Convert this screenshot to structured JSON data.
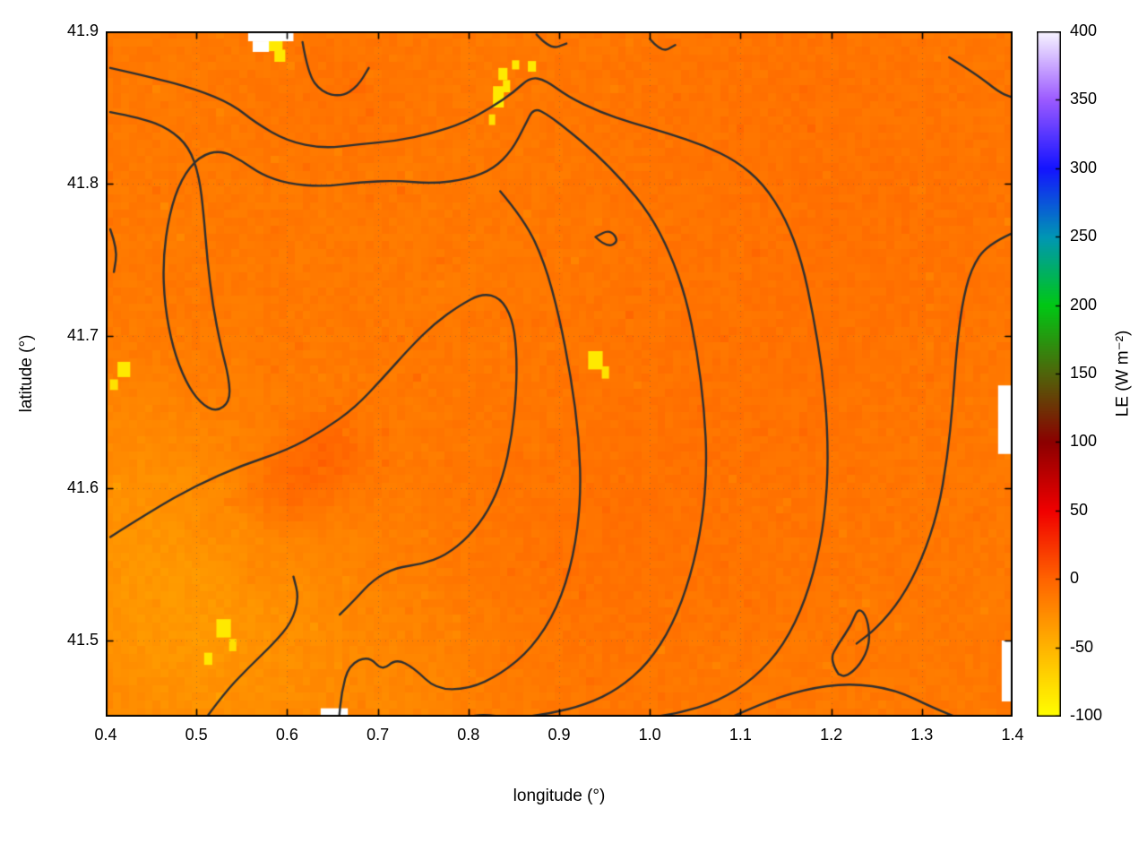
{
  "chart_data": {
    "type": "heatmap",
    "title": "",
    "x_axis": {
      "label": "longitude (°)",
      "min": 0.4,
      "max": 1.4,
      "ticks": [
        {
          "v": 0.4,
          "label": "0.4"
        },
        {
          "v": 0.5,
          "label": "0.5"
        },
        {
          "v": 0.6,
          "label": "0.6"
        },
        {
          "v": 0.7,
          "label": "0.7"
        },
        {
          "v": 0.8,
          "label": "0.8"
        },
        {
          "v": 0.9,
          "label": "0.9"
        },
        {
          "v": 1.0,
          "label": "1.0"
        },
        {
          "v": 1.1,
          "label": "1.1"
        },
        {
          "v": 1.2,
          "label": "1.2"
        },
        {
          "v": 1.3,
          "label": "1.3"
        },
        {
          "v": 1.4,
          "label": "1.4"
        }
      ]
    },
    "y_axis": {
      "label": "latitude (°)",
      "min": 41.45,
      "max": 41.9,
      "ticks": [
        {
          "v": 41.5,
          "label": "41.5"
        },
        {
          "v": 41.6,
          "label": "41.6"
        },
        {
          "v": 41.7,
          "label": "41.7"
        },
        {
          "v": 41.8,
          "label": "41.8"
        },
        {
          "v": 41.9,
          "label": "41.9"
        }
      ]
    },
    "colorbar": {
      "label": "LE (W m⁻²)",
      "min": -100,
      "max": 400,
      "ticks": [
        {
          "v": 400,
          "label": "400"
        },
        {
          "v": 350,
          "label": "350"
        },
        {
          "v": 300,
          "label": "300"
        },
        {
          "v": 250,
          "label": "250"
        },
        {
          "v": 200,
          "label": "200"
        },
        {
          "v": 150,
          "label": "150"
        },
        {
          "v": 100,
          "label": "100"
        },
        {
          "v": 50,
          "label": "50"
        },
        {
          "v": 0,
          "label": "0"
        },
        {
          "v": -50,
          "label": "-50"
        },
        {
          "v": -100,
          "label": "-100"
        }
      ],
      "palette": [
        {
          "v": -100,
          "c": "#ffff00"
        },
        {
          "v": -50,
          "c": "#ffb400"
        },
        {
          "v": 0,
          "c": "#ff6400"
        },
        {
          "v": 50,
          "c": "#f00000"
        },
        {
          "v": 100,
          "c": "#8c0000"
        },
        {
          "v": 150,
          "c": "#50640a"
        },
        {
          "v": 200,
          "c": "#00c814"
        },
        {
          "v": 250,
          "c": "#0096b4"
        },
        {
          "v": 300,
          "c": "#1414ff"
        },
        {
          "v": 350,
          "c": "#9b5aff"
        },
        {
          "v": 400,
          "c": "#f8f4ff"
        }
      ]
    },
    "field": {
      "base_value": -13,
      "noise_amplitude": 3.5,
      "features": [
        {
          "lon": 0.52,
          "lat": 41.5,
          "amp": -14,
          "sigma": 0.13
        },
        {
          "lon": 0.44,
          "lat": 41.55,
          "amp": -8,
          "sigma": 0.1
        },
        {
          "lon": 0.42,
          "lat": 41.63,
          "amp": -5,
          "sigma": 0.06
        },
        {
          "lon": 0.75,
          "lat": 41.46,
          "amp": -5,
          "sigma": 0.08
        },
        {
          "lon": 0.62,
          "lat": 41.61,
          "amp": 11,
          "sigma": 0.035
        },
        {
          "lon": 0.65,
          "lat": 41.625,
          "amp": 9,
          "sigma": 0.03
        },
        {
          "lon": 0.6,
          "lat": 41.585,
          "amp": 7,
          "sigma": 0.025
        },
        {
          "lon": 0.565,
          "lat": 41.545,
          "amp": 6,
          "sigma": 0.018
        },
        {
          "lon": 0.515,
          "lat": 41.575,
          "amp": 5,
          "sigma": 0.015
        },
        {
          "lon": 0.57,
          "lat": 41.6,
          "amp": 5,
          "sigma": 0.02
        },
        {
          "lon": 1.08,
          "lat": 41.64,
          "amp": 4,
          "sigma": 0.15
        },
        {
          "lon": 1.28,
          "lat": 41.78,
          "amp": 3,
          "sigma": 0.12
        },
        {
          "lon": 1.1,
          "lat": 41.87,
          "amp": 3,
          "sigma": 0.15
        },
        {
          "lon": 0.66,
          "lat": 41.86,
          "amp": 4,
          "sigma": 0.06
        },
        {
          "lon": 0.92,
          "lat": 41.55,
          "amp": 3,
          "sigma": 0.1
        }
      ],
      "low_spots": [
        {
          "lon": 0.585,
          "lat": 41.892,
          "w": 0.02,
          "h": 0.01,
          "value": -85
        },
        {
          "lon": 0.592,
          "lat": 41.884,
          "w": 0.012,
          "h": 0.008,
          "value": -85
        },
        {
          "lon": 0.838,
          "lat": 41.872,
          "w": 0.01,
          "h": 0.008,
          "value": -85
        },
        {
          "lon": 0.852,
          "lat": 41.878,
          "w": 0.008,
          "h": 0.006,
          "value": -85
        },
        {
          "lon": 0.833,
          "lat": 41.857,
          "w": 0.012,
          "h": 0.014,
          "value": -85
        },
        {
          "lon": 0.842,
          "lat": 41.864,
          "w": 0.008,
          "h": 0.008,
          "value": -85
        },
        {
          "lon": 0.826,
          "lat": 41.842,
          "w": 0.007,
          "h": 0.007,
          "value": -80
        },
        {
          "lon": 0.87,
          "lat": 41.877,
          "w": 0.009,
          "h": 0.007,
          "value": -85
        },
        {
          "lon": 0.42,
          "lat": 41.678,
          "w": 0.014,
          "h": 0.01,
          "value": -85
        },
        {
          "lon": 0.409,
          "lat": 41.668,
          "w": 0.009,
          "h": 0.007,
          "value": -80
        },
        {
          "lon": 0.94,
          "lat": 41.684,
          "w": 0.016,
          "h": 0.012,
          "value": -85
        },
        {
          "lon": 0.951,
          "lat": 41.676,
          "w": 0.008,
          "h": 0.008,
          "value": -80
        },
        {
          "lon": 0.53,
          "lat": 41.508,
          "w": 0.016,
          "h": 0.012,
          "value": -85
        },
        {
          "lon": 0.54,
          "lat": 41.497,
          "w": 0.008,
          "h": 0.008,
          "value": -80
        },
        {
          "lon": 0.513,
          "lat": 41.488,
          "w": 0.009,
          "h": 0.008,
          "value": -85
        }
      ],
      "missing": [
        {
          "lon": 0.582,
          "lat": 41.897,
          "w": 0.05,
          "h": 0.007
        },
        {
          "lon": 0.571,
          "lat": 41.89,
          "w": 0.018,
          "h": 0.007
        },
        {
          "lon": 0.652,
          "lat": 41.451,
          "w": 0.03,
          "h": 0.009
        },
        {
          "lon": 1.392,
          "lat": 41.645,
          "w": 0.016,
          "h": 0.045
        },
        {
          "lon": 1.394,
          "lat": 41.48,
          "w": 0.012,
          "h": 0.04
        }
      ]
    },
    "contours": {
      "color": "#303030",
      "width": 2.4,
      "lines": [
        [
          [
            0.405,
            41.876
          ],
          [
            0.45,
            41.87
          ],
          [
            0.5,
            41.862
          ],
          [
            0.54,
            41.852
          ],
          [
            0.565,
            41.84
          ],
          [
            0.6,
            41.828
          ],
          [
            0.64,
            41.823
          ],
          [
            0.68,
            41.826
          ],
          [
            0.72,
            41.828
          ],
          [
            0.76,
            41.833
          ],
          [
            0.795,
            41.84
          ],
          [
            0.825,
            41.85
          ],
          [
            0.85,
            41.86
          ],
          [
            0.868,
            41.87
          ],
          [
            0.885,
            41.868
          ],
          [
            0.91,
            41.857
          ],
          [
            0.945,
            41.847
          ],
          [
            0.98,
            41.84
          ],
          [
            1.02,
            41.833
          ],
          [
            1.06,
            41.825
          ],
          [
            1.095,
            41.815
          ],
          [
            1.125,
            41.8
          ],
          [
            1.15,
            41.777
          ],
          [
            1.168,
            41.748
          ],
          [
            1.18,
            41.714
          ],
          [
            1.19,
            41.678
          ],
          [
            1.196,
            41.64
          ],
          [
            1.196,
            41.6
          ],
          [
            1.188,
            41.562
          ],
          [
            1.172,
            41.527
          ],
          [
            1.148,
            41.497
          ],
          [
            1.115,
            41.475
          ],
          [
            1.075,
            41.46
          ],
          [
            1.03,
            41.452
          ],
          [
            0.985,
            41.448
          ]
        ],
        [
          [
            0.405,
            41.847
          ],
          [
            0.44,
            41.843
          ],
          [
            0.47,
            41.836
          ],
          [
            0.492,
            41.824
          ],
          [
            0.503,
            41.805
          ],
          [
            0.508,
            41.78
          ],
          [
            0.512,
            41.75
          ],
          [
            0.518,
            41.72
          ],
          [
            0.527,
            41.693
          ],
          [
            0.536,
            41.672
          ],
          [
            0.537,
            41.657
          ],
          [
            0.522,
            41.65
          ],
          [
            0.504,
            41.656
          ],
          [
            0.488,
            41.67
          ],
          [
            0.474,
            41.692
          ],
          [
            0.465,
            41.72
          ],
          [
            0.463,
            41.75
          ],
          [
            0.47,
            41.78
          ],
          [
            0.483,
            41.803
          ],
          [
            0.503,
            41.818
          ],
          [
            0.527,
            41.822
          ],
          [
            0.55,
            41.815
          ],
          [
            0.572,
            41.806
          ],
          [
            0.6,
            41.8
          ],
          [
            0.64,
            41.798
          ],
          [
            0.68,
            41.801
          ],
          [
            0.72,
            41.802
          ],
          [
            0.76,
            41.8
          ],
          [
            0.8,
            41.803
          ],
          [
            0.828,
            41.81
          ],
          [
            0.848,
            41.822
          ],
          [
            0.862,
            41.838
          ],
          [
            0.872,
            41.85
          ],
          [
            0.888,
            41.845
          ],
          [
            0.91,
            41.835
          ],
          [
            0.94,
            41.82
          ],
          [
            0.97,
            41.802
          ],
          [
            1.0,
            41.78
          ],
          [
            1.022,
            41.755
          ],
          [
            1.04,
            41.725
          ],
          [
            1.052,
            41.69
          ],
          [
            1.06,
            41.652
          ],
          [
            1.063,
            41.615
          ],
          [
            1.058,
            41.578
          ],
          [
            1.045,
            41.542
          ],
          [
            1.025,
            41.51
          ],
          [
            0.998,
            41.485
          ],
          [
            0.965,
            41.468
          ],
          [
            0.93,
            41.458
          ],
          [
            0.89,
            41.452
          ],
          [
            0.85,
            41.449
          ],
          [
            0.81,
            41.452
          ],
          [
            0.79,
            41.447
          ]
        ],
        [
          [
            0.835,
            41.795
          ],
          [
            0.862,
            41.776
          ],
          [
            0.884,
            41.748
          ],
          [
            0.9,
            41.713
          ],
          [
            0.913,
            41.673
          ],
          [
            0.922,
            41.633
          ],
          [
            0.924,
            41.593
          ],
          [
            0.916,
            41.555
          ],
          [
            0.898,
            41.521
          ],
          [
            0.87,
            41.495
          ],
          [
            0.836,
            41.478
          ],
          [
            0.8,
            41.468
          ],
          [
            0.764,
            41.468
          ],
          [
            0.74,
            41.482
          ],
          [
            0.72,
            41.488
          ],
          [
            0.705,
            41.48
          ],
          [
            0.69,
            41.49
          ],
          [
            0.668,
            41.484
          ],
          [
            0.66,
            41.466
          ],
          [
            0.657,
            41.447
          ]
        ],
        [
          [
            0.405,
            41.568
          ],
          [
            0.45,
            41.585
          ],
          [
            0.5,
            41.602
          ],
          [
            0.55,
            41.615
          ],
          [
            0.6,
            41.625
          ],
          [
            0.64,
            41.638
          ],
          [
            0.675,
            41.653
          ],
          [
            0.705,
            41.672
          ],
          [
            0.735,
            41.692
          ],
          [
            0.762,
            41.708
          ],
          [
            0.79,
            41.72
          ],
          [
            0.815,
            41.728
          ],
          [
            0.835,
            41.725
          ],
          [
            0.848,
            41.712
          ],
          [
            0.853,
            41.692
          ],
          [
            0.853,
            41.665
          ],
          [
            0.848,
            41.635
          ],
          [
            0.838,
            41.607
          ],
          [
            0.822,
            41.585
          ],
          [
            0.8,
            41.568
          ],
          [
            0.775,
            41.556
          ],
          [
            0.748,
            41.55
          ],
          [
            0.72,
            41.548
          ],
          [
            0.695,
            41.54
          ],
          [
            0.675,
            41.527
          ],
          [
            0.658,
            41.517
          ]
        ],
        [
          [
            0.508,
            41.447
          ],
          [
            0.53,
            41.465
          ],
          [
            0.557,
            41.482
          ],
          [
            0.585,
            41.498
          ],
          [
            0.605,
            41.512
          ],
          [
            0.613,
            41.528
          ],
          [
            0.607,
            41.542
          ]
        ],
        [
          [
            0.94,
            41.765
          ],
          [
            0.952,
            41.758
          ],
          [
            0.966,
            41.762
          ],
          [
            0.956,
            41.77
          ],
          [
            0.94,
            41.765
          ]
        ],
        [
          [
            1.398,
            41.767
          ],
          [
            1.372,
            41.76
          ],
          [
            1.354,
            41.744
          ],
          [
            1.344,
            41.72
          ],
          [
            1.338,
            41.69
          ],
          [
            1.334,
            41.655
          ],
          [
            1.328,
            41.62
          ],
          [
            1.318,
            41.585
          ],
          [
            1.3,
            41.553
          ],
          [
            1.277,
            41.527
          ],
          [
            1.25,
            41.508
          ],
          [
            1.228,
            41.498
          ]
        ],
        [
          [
            1.208,
            41.478
          ],
          [
            1.198,
            41.487
          ],
          [
            1.208,
            41.498
          ],
          [
            1.222,
            41.51
          ],
          [
            1.23,
            41.522
          ],
          [
            1.24,
            41.515
          ],
          [
            1.243,
            41.498
          ],
          [
            1.232,
            41.484
          ],
          [
            1.216,
            41.476
          ],
          [
            1.208,
            41.478
          ]
        ],
        [
          [
            1.08,
            41.447
          ],
          [
            1.12,
            41.458
          ],
          [
            1.17,
            41.468
          ],
          [
            1.22,
            41.472
          ],
          [
            1.27,
            41.468
          ],
          [
            1.315,
            41.455
          ],
          [
            1.35,
            41.447
          ]
        ],
        [
          [
            1.33,
            41.883
          ],
          [
            1.36,
            41.872
          ],
          [
            1.385,
            41.86
          ],
          [
            1.398,
            41.857
          ]
        ],
        [
          [
            0.617,
            41.893
          ],
          [
            0.623,
            41.872
          ],
          [
            0.638,
            41.86
          ],
          [
            0.66,
            41.857
          ],
          [
            0.678,
            41.864
          ],
          [
            0.69,
            41.876
          ]
        ],
        [
          [
            0.875,
            41.898
          ],
          [
            0.89,
            41.888
          ],
          [
            0.908,
            41.892
          ]
        ],
        [
          [
            1.0,
            41.895
          ],
          [
            1.013,
            41.886
          ],
          [
            1.028,
            41.891
          ]
        ],
        [
          [
            0.405,
            41.77
          ],
          [
            0.413,
            41.757
          ],
          [
            0.409,
            41.742
          ]
        ]
      ]
    },
    "grid": {
      "show": true,
      "style": "dotted",
      "color": "rgba(80,80,80,0.45)"
    }
  }
}
